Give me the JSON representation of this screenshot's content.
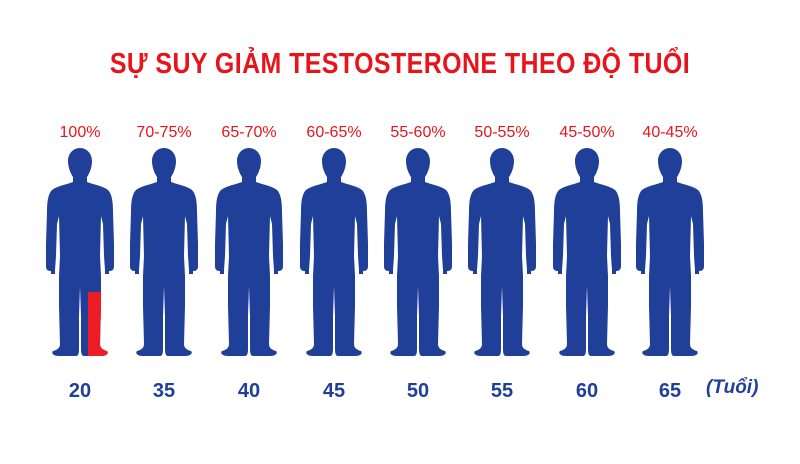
{
  "title": "SỰ SUY GIẢM TESTOSTERONE THEO ĐỘ TUỔI",
  "chart_data": {
    "type": "bar",
    "title": "SỰ SUY GIẢM TESTOSTERONE THEO ĐỘ TUỔI",
    "categories": [
      "20",
      "35",
      "40",
      "45",
      "50",
      "55",
      "60",
      "65"
    ],
    "value_labels": [
      "100%",
      "70-75%",
      "65-70%",
      "60-65%",
      "55-60%",
      "50-55%",
      "45-50%",
      "40-45%"
    ],
    "values": [
      100,
      72.5,
      67.5,
      62.5,
      57.5,
      52.5,
      47.5,
      42.5
    ],
    "ylim": [
      0,
      100
    ],
    "x_unit": "(Tuổi)",
    "colors": {
      "level": "#ee1c25",
      "remaining": "#1f3f99",
      "label": "#e8141b",
      "axis": "#1f3f99"
    }
  }
}
